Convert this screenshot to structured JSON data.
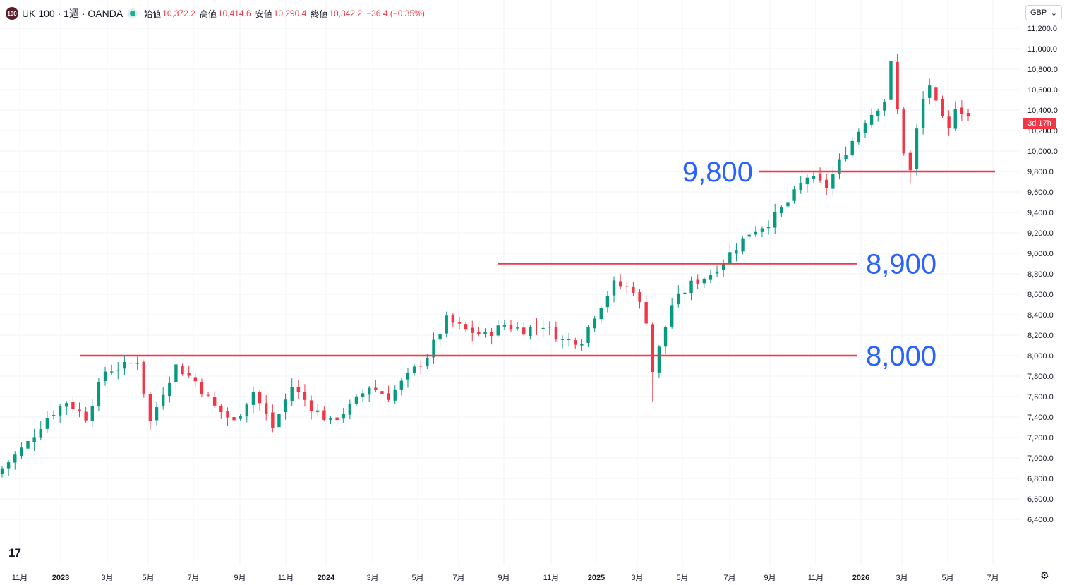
{
  "header": {
    "symbol_line": "UK 100 · 1週 · OANDA",
    "logo_text": "100",
    "open_label": "始値",
    "open_value": "10,372.2",
    "high_label": "高値",
    "high_value": "10,414.6",
    "low_label": "安値",
    "low_value": "10,290.4",
    "close_label": "終値",
    "close_value": "10,342.2",
    "change": "−36.4 (−0.35%)"
  },
  "currency": {
    "label": "GBP",
    "icon": "chevron-down-icon"
  },
  "countdown": "3d 17h",
  "colors": {
    "up": "#089981",
    "down": "#f23645",
    "level_line": "#f23645",
    "level_text": "#2962ff",
    "grid": "#f0f3fa"
  },
  "chart_data": {
    "type": "candlestick",
    "interval": "1週",
    "ylim": [
      6300,
      11300
    ],
    "y_ticks": [
      "11,200.0",
      "11,000.0",
      "10,800.0",
      "10,600.0",
      "10,400.0",
      "10,200.0",
      "10,000.0",
      "9,800.0",
      "9,600.0",
      "9,400.0",
      "9,200.0",
      "9,000.0",
      "8,800.0",
      "8,600.0",
      "8,400.0",
      "8,200.0",
      "8,000.0",
      "7,800.0",
      "7,600.0",
      "7,400.0",
      "7,200.0",
      "7,000.0",
      "6,800.0",
      "6,600.0",
      "6,400.0"
    ],
    "x_ticks": [
      "11月",
      "2023",
      "3月",
      "5月",
      "7月",
      "9月",
      "11月",
      "2024",
      "3月",
      "5月",
      "7月",
      "9月",
      "11月",
      "2025",
      "3月",
      "5月",
      "7月",
      "9月",
      "11月",
      "2026",
      "3月",
      "5月",
      "7月"
    ],
    "last_price": 10342.2,
    "levels": [
      {
        "value": 9800,
        "label": "9,800",
        "extent": "from 2024-09 to 2026-07",
        "label_side": "left"
      },
      {
        "value": 8900,
        "label": "8,900",
        "extent": "from 2024-09 to 2025-08",
        "label_side": "right"
      },
      {
        "value": 8000,
        "label": "8,000",
        "extent": "from 2023-01 to 2025-08",
        "label_side": "right"
      }
    ],
    "close_path": [
      [
        0,
        6900
      ],
      [
        4,
        7150
      ],
      [
        7,
        7400
      ],
      [
        10,
        7550
      ],
      [
        13,
        7400
      ],
      [
        16,
        7850
      ],
      [
        19,
        7900
      ],
      [
        21,
        7950
      ],
      [
        23,
        7350
      ],
      [
        25,
        7650
      ],
      [
        27,
        7900
      ],
      [
        30,
        7750
      ],
      [
        33,
        7500
      ],
      [
        36,
        7350
      ],
      [
        39,
        7650
      ],
      [
        42,
        7300
      ],
      [
        45,
        7700
      ],
      [
        48,
        7500
      ],
      [
        51,
        7350
      ],
      [
        54,
        7500
      ],
      [
        57,
        7700
      ],
      [
        60,
        7600
      ],
      [
        63,
        7800
      ],
      [
        66,
        8000
      ],
      [
        69,
        8350
      ],
      [
        72,
        8250
      ],
      [
        75,
        8200
      ],
      [
        78,
        8300
      ],
      [
        81,
        8250
      ],
      [
        84,
        8300
      ],
      [
        87,
        8150
      ],
      [
        90,
        8150
      ],
      [
        92,
        8400
      ],
      [
        95,
        8700
      ],
      [
        98,
        8650
      ],
      [
        100,
        8350
      ],
      [
        101,
        7850
      ],
      [
        104,
        8500
      ],
      [
        107,
        8700
      ],
      [
        110,
        8800
      ],
      [
        113,
        9000
      ],
      [
        116,
        9200
      ],
      [
        119,
        9300
      ],
      [
        122,
        9500
      ],
      [
        125,
        9750
      ],
      [
        128,
        9650
      ],
      [
        131,
        10000
      ],
      [
        134,
        10300
      ],
      [
        137,
        10500
      ],
      [
        138,
        10850
      ],
      [
        139,
        10400
      ],
      [
        140,
        10000
      ],
      [
        141,
        9800
      ],
      [
        142,
        10200
      ],
      [
        143,
        10500
      ],
      [
        144,
        10650
      ],
      [
        145,
        10450
      ],
      [
        146,
        10300
      ],
      [
        147,
        10200
      ],
      [
        148,
        10450
      ],
      [
        149,
        10400
      ],
      [
        150,
        10342
      ]
    ]
  }
}
